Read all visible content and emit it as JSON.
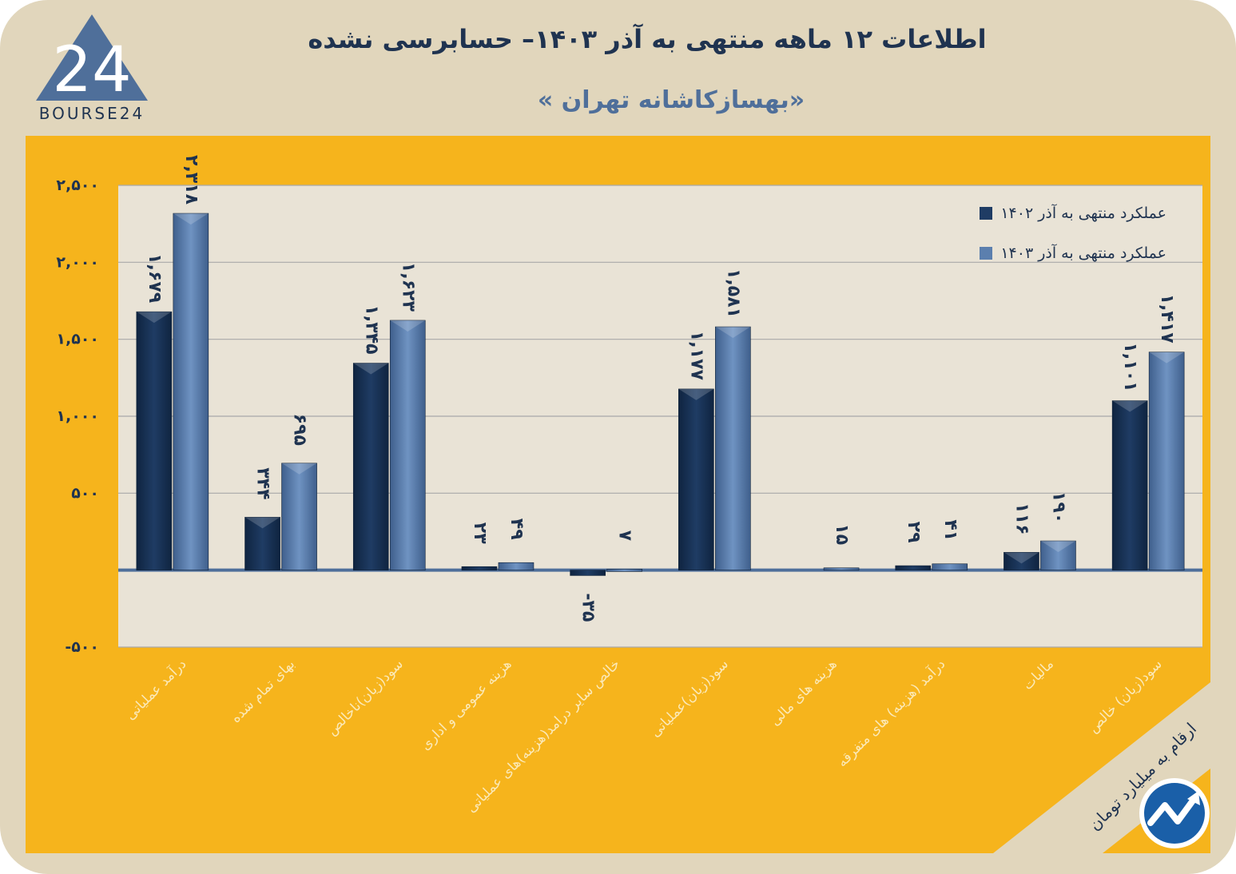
{
  "header": {
    "title": "اطلاعات ۱۲ ماهه منتهی به آذر ۱۴۰۳– حسابرسی نشده",
    "subtitle": "«بهسازکاشانه تهران »",
    "logo_text": "BOURSE24",
    "logo_mark": "24"
  },
  "note": "ارقام به میلیارد تومان",
  "colors": {
    "background": "#e1d6bc",
    "panel": "#f6b41c",
    "plot": "#e9e3d6",
    "series_1": "#1f3c64",
    "series_2": "#5b7fae",
    "text_dark": "#1f3350",
    "category_text": "#fbe9b8"
  },
  "chart_data": {
    "type": "bar",
    "categories": [
      "درآمد عملیاتی",
      "بهای تمام شده",
      "سود(زیان)ناخالص",
      "هزینه عمومی و اداری",
      "خالص سایر درامد(هزینه)های عملیاتی",
      "سود(زیان)عملیاتی",
      "هزینه های مالی",
      "درآمد (هزینه) های متفرقه",
      "مالیات",
      "سود(زیان) خالص"
    ],
    "series": [
      {
        "name": "عملکرد منتهی به آذر ۱۴۰۲",
        "values": [
          1679,
          344,
          1345,
          23,
          -35,
          1177,
          null,
          29,
          116,
          1101
        ],
        "labels": [
          "۱,۶۷۹",
          "۳۴۴",
          "۱,۳۴۵",
          "۲۳",
          "-۳۵",
          "۱,۱۷۷",
          "",
          "۲۹",
          "۱۱۶",
          "۱,۱۰۱"
        ]
      },
      {
        "name": "عملکرد منتهی به آذر ۱۴۰۳",
        "values": [
          2318,
          695,
          1623,
          49,
          7,
          1581,
          15,
          41,
          190,
          1417
        ],
        "labels": [
          "۲,۳۱۸",
          "۶۹۵",
          "۱,۶۲۳",
          "۴۹",
          "۷",
          "۱,۵۸۱",
          "۱۵",
          "۴۱",
          "۱۹۰",
          "۱,۴۱۷"
        ]
      }
    ],
    "yticks": [
      -500,
      500,
      1000,
      1500,
      2000,
      2500
    ],
    "ytick_labels": [
      "-۵۰۰",
      "۵۰۰",
      "۱,۰۰۰",
      "۱,۵۰۰",
      "۲,۰۰۰",
      "۲,۵۰۰"
    ],
    "ylim": [
      -500,
      2500
    ],
    "grid": true,
    "legend_position": "top-right"
  }
}
